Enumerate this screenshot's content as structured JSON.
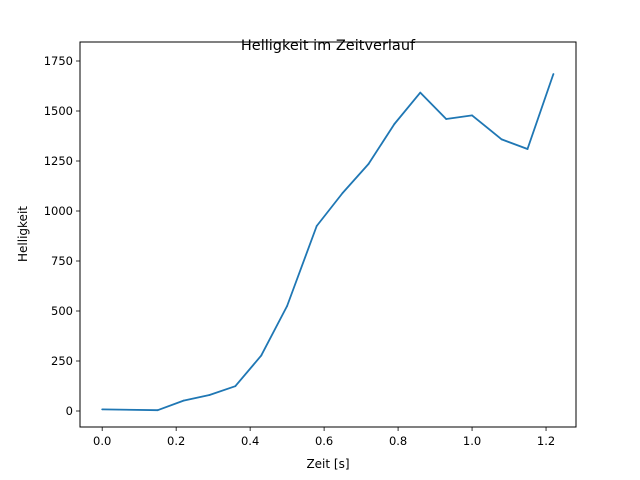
{
  "chart_data": {
    "type": "line",
    "title": "Helligkeit im Zeitverlauf",
    "xlabel": "Zeit [s]",
    "ylabel": "Helligkeit",
    "xlim": [
      -0.06,
      1.281
    ],
    "ylim": [
      -80,
      1845
    ],
    "xticks": [
      0.0,
      0.2,
      0.4,
      0.6,
      0.8,
      1.0,
      1.2
    ],
    "xtick_labels": [
      "0.0",
      "0.2",
      "0.4",
      "0.6",
      "0.8",
      "1.0",
      "1.2"
    ],
    "yticks": [
      0,
      250,
      500,
      750,
      1000,
      1250,
      1500,
      1750
    ],
    "ytick_labels": [
      "0",
      "250",
      "500",
      "750",
      "1000",
      "1250",
      "1500",
      "1750"
    ],
    "grid": false,
    "color": "#1f77b4",
    "series": [
      {
        "name": "Helligkeit",
        "x": [
          0.0,
          0.15,
          0.22,
          0.29,
          0.36,
          0.43,
          0.5,
          0.58,
          0.65,
          0.72,
          0.79,
          0.86,
          0.93,
          1.0,
          1.08,
          1.15,
          1.22
        ],
        "y": [
          8,
          4,
          52,
          80,
          124,
          277,
          525,
          925,
          1090,
          1235,
          1435,
          1592,
          1460,
          1478,
          1358,
          1310,
          1685
        ]
      }
    ]
  }
}
